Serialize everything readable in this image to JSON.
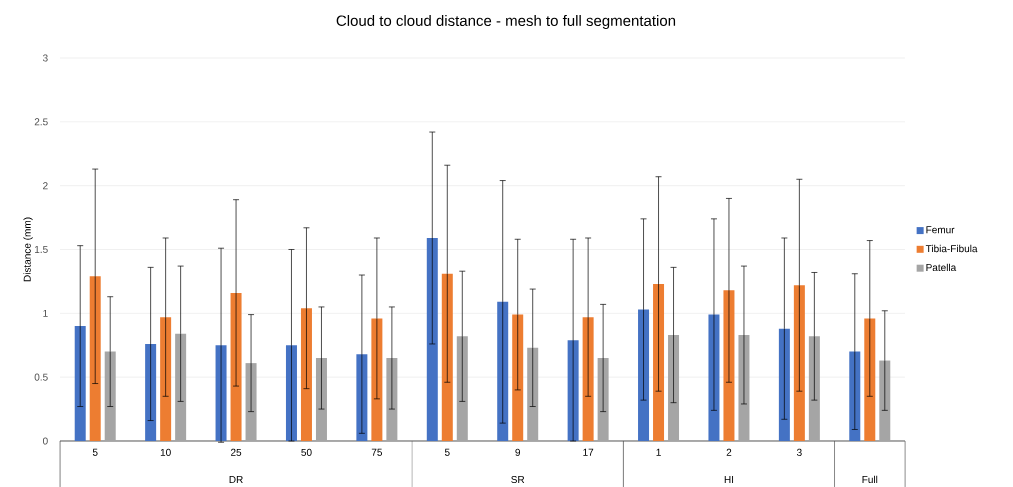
{
  "chart_data": {
    "type": "bar",
    "title": "Cloud to cloud distance - mesh to full segmentation",
    "ylabel": "Distance (mm)",
    "categories": [
      "5",
      "10",
      "25",
      "50",
      "75",
      "5",
      "9",
      "17",
      "1",
      "2",
      "3",
      null
    ],
    "annotations": [
      "DR",
      "SR",
      "HI",
      "Full"
    ],
    "series": [
      {
        "name": "Femur",
        "color": "#4472c4",
        "values": [
          0.9,
          0.76,
          0.75,
          0.75,
          0.68,
          1.59,
          1.09,
          0.79,
          1.03,
          0.99,
          0.88,
          0.7
        ],
        "errors": [
          0.63,
          0.6,
          0.76,
          0.75,
          0.62,
          0.83,
          0.95,
          0.79,
          0.71,
          0.75,
          0.71,
          0.61
        ]
      },
      {
        "name": "Tibia-Fibula",
        "color": "#ed7d31",
        "values": [
          1.29,
          0.97,
          1.16,
          1.04,
          0.96,
          1.31,
          0.99,
          0.97,
          1.23,
          1.18,
          1.22,
          0.96
        ],
        "errors": [
          0.84,
          0.62,
          0.73,
          0.63,
          0.63,
          0.85,
          0.59,
          0.62,
          0.84,
          0.72,
          0.83,
          0.61
        ]
      },
      {
        "name": "Patella",
        "color": "#a5a5a5",
        "values": [
          0.7,
          0.84,
          0.61,
          0.65,
          0.65,
          0.82,
          0.73,
          0.65,
          0.83,
          0.83,
          0.82,
          0.63
        ],
        "errors": [
          0.43,
          0.53,
          0.38,
          0.4,
          0.4,
          0.51,
          0.46,
          0.42,
          0.53,
          0.54,
          0.5,
          0.39
        ]
      }
    ],
    "ylim": [
      0,
      3
    ],
    "yticks": [
      0,
      0.5,
      1,
      1.5,
      2,
      2.5,
      3
    ],
    "grid": "y",
    "legend": "right"
  }
}
